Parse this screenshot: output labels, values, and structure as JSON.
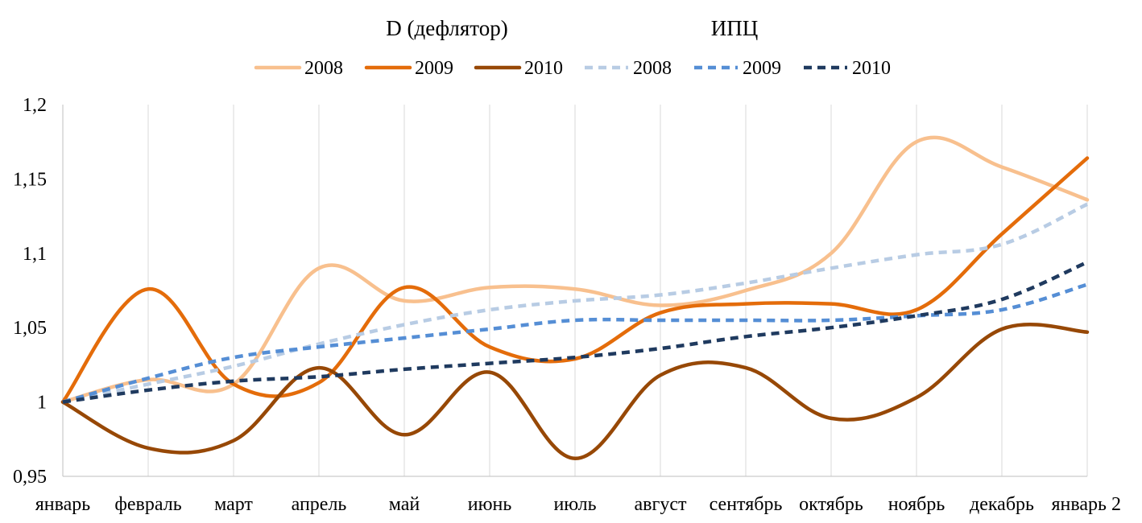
{
  "chart_data": {
    "type": "line",
    "group_titles": [
      "D (дефлятор)",
      "ИПЦ"
    ],
    "categories": [
      "январь",
      "февраль",
      "март",
      "апрель",
      "май",
      "июнь",
      "июль",
      "август",
      "сентябрь",
      "октябрь",
      "ноябрь",
      "декабрь",
      "январь 2"
    ],
    "y_ticks": [
      "0,95",
      "1",
      "1,05",
      "1,1",
      "1,15",
      "1,2"
    ],
    "ylim": [
      0.95,
      1.2
    ],
    "grid": "vertical",
    "legend_position": "top",
    "series": [
      {
        "name": "2008",
        "group": "D (дефлятор)",
        "color": "#F8C08E",
        "dash": false,
        "values": [
          1.0,
          1.015,
          1.012,
          1.09,
          1.068,
          1.077,
          1.076,
          1.065,
          1.075,
          1.1,
          1.175,
          1.158,
          1.136
        ]
      },
      {
        "name": "2009",
        "group": "D (дефлятор)",
        "color": "#E46C0A",
        "dash": false,
        "values": [
          1.0,
          1.076,
          1.012,
          1.013,
          1.077,
          1.037,
          1.029,
          1.06,
          1.066,
          1.066,
          1.062,
          1.113,
          1.164
        ]
      },
      {
        "name": "2010",
        "group": "D (дефлятор)",
        "color": "#974806",
        "dash": false,
        "values": [
          1.0,
          0.969,
          0.974,
          1.023,
          0.978,
          1.02,
          0.962,
          1.018,
          1.023,
          0.989,
          1.003,
          1.049,
          1.047
        ]
      },
      {
        "name": "2008",
        "group": "ИПЦ",
        "color": "#B8CCE4",
        "dash": true,
        "values": [
          1.0,
          1.012,
          1.024,
          1.039,
          1.052,
          1.062,
          1.068,
          1.072,
          1.08,
          1.09,
          1.099,
          1.106,
          1.133
        ]
      },
      {
        "name": "2009",
        "group": "ИПЦ",
        "color": "#558ED5",
        "dash": true,
        "values": [
          1.0,
          1.016,
          1.03,
          1.037,
          1.043,
          1.049,
          1.055,
          1.055,
          1.055,
          1.055,
          1.058,
          1.062,
          1.079
        ]
      },
      {
        "name": "2010",
        "group": "ИПЦ",
        "color": "#1F3A5F",
        "dash": true,
        "values": [
          1.0,
          1.008,
          1.014,
          1.017,
          1.022,
          1.026,
          1.03,
          1.036,
          1.044,
          1.05,
          1.058,
          1.069,
          1.094
        ]
      }
    ]
  }
}
